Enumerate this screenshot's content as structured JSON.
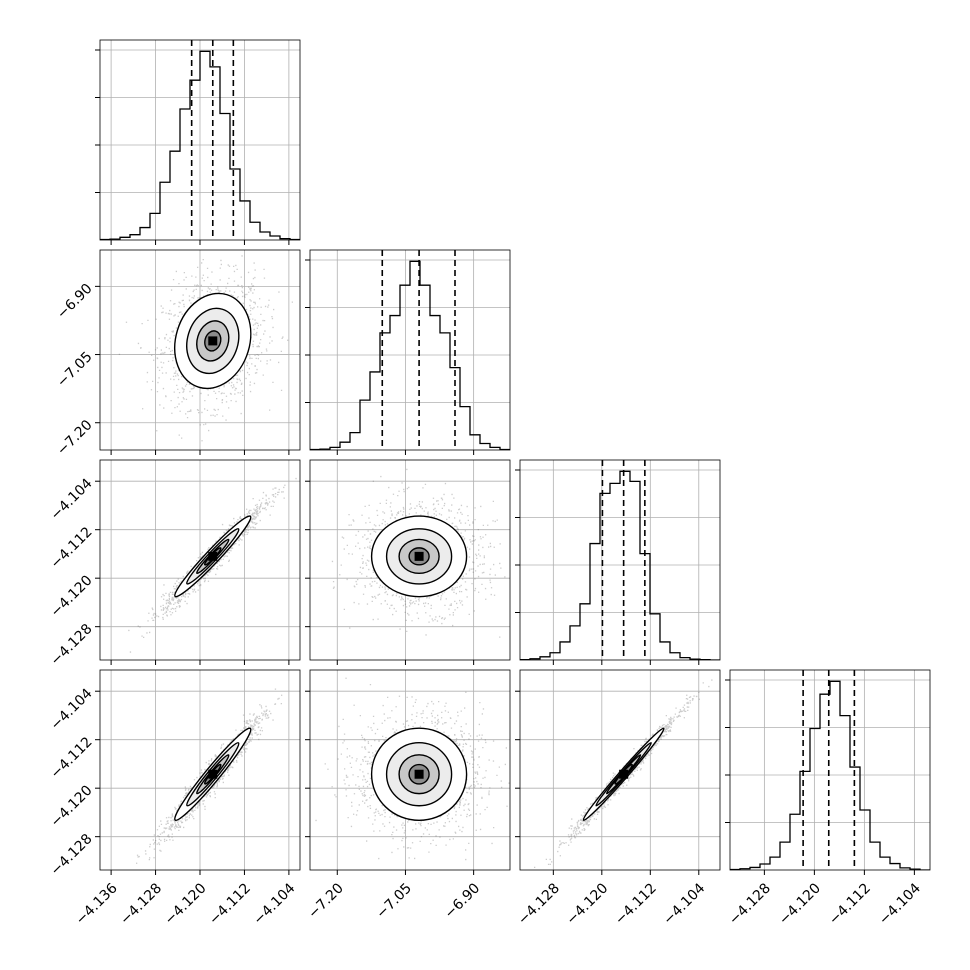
{
  "chart_data": {
    "type": "corner",
    "n_params": 4,
    "grid": true,
    "parameters": [
      {
        "index": 0,
        "xlim": [
          -4.138,
          -4.102
        ],
        "ticks": [
          -4.136,
          -4.128,
          -4.12,
          -4.112,
          -4.104
        ],
        "tick_labels": [
          "−4.136",
          "−4.128",
          "−4.120",
          "−4.112",
          "−4.104"
        ],
        "quantiles": [
          -4.1215,
          -4.1177,
          -4.114
        ]
      },
      {
        "index": 1,
        "ylim": [
          -7.26,
          -6.82
        ],
        "xlim": [
          -7.26,
          -6.82
        ],
        "ticks": [
          -7.2,
          -7.05,
          -6.9
        ],
        "tick_labels": [
          "−7.20",
          "−7.05",
          "−6.90"
        ],
        "quantiles": [
          -7.101,
          -7.02,
          -6.941
        ]
      },
      {
        "index": 2,
        "xlim": [
          -4.1335,
          -4.1005
        ],
        "ylim": [
          -4.1335,
          -4.1005
        ],
        "ticks": [
          -4.128,
          -4.12,
          -4.112,
          -4.104
        ],
        "tick_labels": [
          "−4.128",
          "−4.120",
          "−4.112",
          "−4.104"
        ],
        "quantiles": [
          -4.1199,
          -4.1164,
          -4.1129
        ]
      },
      {
        "index": 3,
        "xlim": [
          -4.1335,
          -4.1015
        ],
        "ylim": [
          -4.1335,
          -4.1005
        ],
        "ticks": [
          -4.128,
          -4.12,
          -4.112,
          -4.104
        ],
        "tick_labels": [
          "−4.128",
          "−4.120",
          "−4.112",
          "−4.104"
        ],
        "quantiles": [
          -4.1218,
          -4.1177,
          -4.1136
        ]
      }
    ],
    "histograms": [
      {
        "param": 0,
        "bins": [
          -4.138,
          -4.1362,
          -4.1344,
          -4.1326,
          -4.1308,
          -4.129,
          -4.1272,
          -4.1254,
          -4.1236,
          -4.1218,
          -4.12,
          -4.1182,
          -4.1164,
          -4.1146,
          -4.1128,
          -4.111,
          -4.1092,
          -4.1074,
          -4.1056,
          -4.1038,
          -4.102
        ],
        "counts": [
          1,
          2,
          6,
          12,
          28,
          60,
          130,
          200,
          295,
          360,
          425,
          390,
          285,
          160,
          88,
          40,
          18,
          9,
          3,
          1
        ]
      },
      {
        "param": 1,
        "bins": [
          -7.26,
          -7.238,
          -7.216,
          -7.194,
          -7.172,
          -7.15,
          -7.128,
          -7.106,
          -7.084,
          -7.062,
          -7.04,
          -7.018,
          -6.996,
          -6.974,
          -6.952,
          -6.93,
          -6.908,
          -6.886,
          -6.864,
          -6.842,
          -6.82
        ],
        "counts": [
          1,
          2,
          6,
          18,
          40,
          115,
          180,
          270,
          310,
          380,
          435,
          380,
          310,
          270,
          190,
          100,
          35,
          15,
          6,
          1
        ]
      },
      {
        "param": 2,
        "bins": [
          -4.1335,
          -4.13185,
          -4.1302,
          -4.12855,
          -4.1269,
          -4.12525,
          -4.1236,
          -4.12195,
          -4.1203,
          -4.11865,
          -4.117,
          -4.11535,
          -4.1137,
          -4.11205,
          -4.1104,
          -4.10875,
          -4.1071,
          -4.10545,
          -4.1038,
          -4.10215,
          -4.1005
        ],
        "counts": [
          1,
          3,
          8,
          18,
          45,
          85,
          140,
          290,
          415,
          440,
          470,
          445,
          265,
          115,
          45,
          18,
          6,
          2,
          1,
          0
        ]
      },
      {
        "param": 3,
        "bins": [
          -4.1335,
          -4.1319,
          -4.1303,
          -4.1287,
          -4.1271,
          -4.1255,
          -4.1239,
          -4.1223,
          -4.1207,
          -4.1191,
          -4.1175,
          -4.1159,
          -4.1143,
          -4.1127,
          -4.1111,
          -4.1095,
          -4.1079,
          -4.1063,
          -4.1047,
          -4.1031,
          -4.1015
        ],
        "counts": [
          1,
          3,
          6,
          14,
          30,
          65,
          130,
          230,
          330,
          410,
          440,
          360,
          240,
          140,
          65,
          30,
          15,
          5,
          2,
          0
        ]
      }
    ],
    "pairs": [
      {
        "row": 1,
        "col": 0,
        "mean": [
          -4.1177,
          -7.02
        ],
        "std": [
          0.0036,
          0.055
        ],
        "corr": 0.15
      },
      {
        "row": 2,
        "col": 0,
        "mean": [
          -4.1177,
          -4.1164
        ],
        "std": [
          0.0036,
          0.0035
        ],
        "corr": 0.97
      },
      {
        "row": 2,
        "col": 1,
        "mean": [
          -7.02,
          -4.1164
        ],
        "std": [
          0.055,
          0.0035
        ],
        "corr": 0.0
      },
      {
        "row": 3,
        "col": 0,
        "mean": [
          -4.1177,
          -4.1177
        ],
        "std": [
          0.0036,
          0.004
        ],
        "corr": 0.97
      },
      {
        "row": 3,
        "col": 1,
        "mean": [
          -7.02,
          -4.1177
        ],
        "std": [
          0.055,
          0.004
        ],
        "corr": 0.0
      },
      {
        "row": 3,
        "col": 2,
        "mean": [
          -4.1164,
          -4.1177
        ],
        "std": [
          0.0035,
          0.004
        ],
        "corr": 0.99
      }
    ]
  }
}
